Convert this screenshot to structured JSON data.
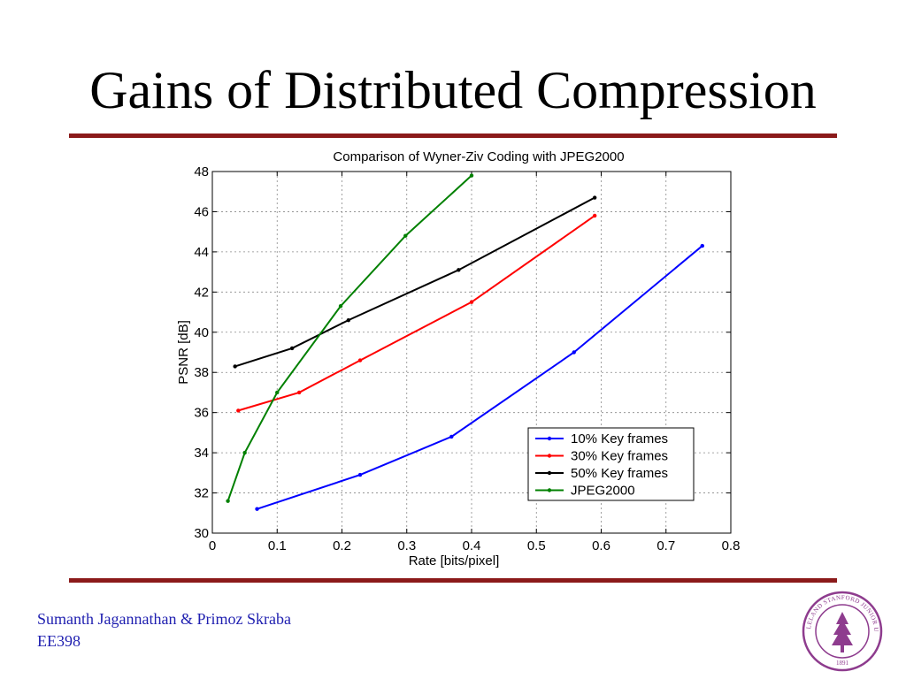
{
  "slide": {
    "title": "Gains of Distributed Compression",
    "footer_authors": "Sumanth Jagannathan & Primoz Skraba",
    "footer_course": "EE398",
    "seal_text": "LELAND STANFORD JUNIOR UNIVERSITY 1891"
  },
  "colors": {
    "rule": "#8b1a1a",
    "footer_text": "#1f1fb0",
    "seal": "#8e3c8e"
  },
  "chart_data": {
    "type": "line",
    "title": "Comparison of Wyner-Ziv Coding with JPEG2000",
    "xlabel": "Rate [bits/pixel]",
    "ylabel": "PSNR [dB]",
    "xlim": [
      0,
      0.8
    ],
    "ylim": [
      30,
      48
    ],
    "xticks": [
      0,
      0.1,
      0.2,
      0.3,
      0.4,
      0.5,
      0.6,
      0.7,
      0.8
    ],
    "yticks": [
      30,
      32,
      34,
      36,
      38,
      40,
      42,
      44,
      46,
      48
    ],
    "grid": true,
    "legend_position": "bottom-right",
    "series": [
      {
        "name": "10% Key frames",
        "color": "#0000ff",
        "x": [
          0.069,
          0.228,
          0.369,
          0.558,
          0.756
        ],
        "y": [
          31.2,
          32.9,
          34.8,
          39.0,
          44.3
        ]
      },
      {
        "name": "30% Key frames",
        "color": "#ff0000",
        "x": [
          0.04,
          0.134,
          0.228,
          0.4,
          0.59
        ],
        "y": [
          36.1,
          37.0,
          38.6,
          41.5,
          45.8
        ]
      },
      {
        "name": "50% Key frames",
        "color": "#000000",
        "x": [
          0.035,
          0.123,
          0.21,
          0.38,
          0.59
        ],
        "y": [
          38.3,
          39.2,
          40.6,
          43.1,
          46.7
        ]
      },
      {
        "name": "JPEG2000",
        "color": "#008000",
        "x": [
          0.024,
          0.05,
          0.1,
          0.198,
          0.298,
          0.4
        ],
        "y": [
          31.6,
          34.0,
          37.0,
          41.3,
          44.8,
          47.8
        ]
      }
    ]
  }
}
